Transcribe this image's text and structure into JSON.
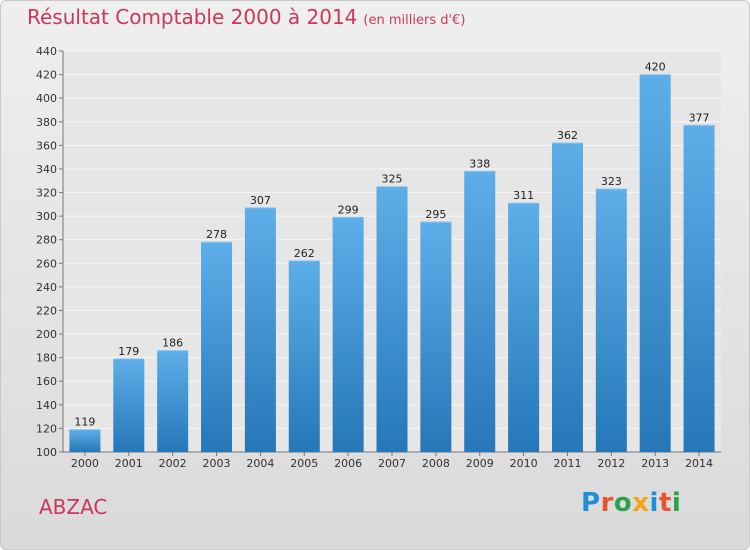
{
  "title": "Résultat Comptable 2000 à 2014",
  "title_unit": "(en milliers d'€)",
  "place_name": "ABZAC",
  "logo_text": "Proxiti",
  "colors": {
    "title": "#c8375f",
    "bar_top": "#5daee8",
    "bar_bottom": "#2677b8",
    "logo": [
      "#1f8fd6",
      "#e8542f",
      "#2aa34a",
      "#f2a516",
      "#1f8fd6",
      "#e8542f",
      "#2aa34a"
    ]
  },
  "chart_data": {
    "type": "bar",
    "categories": [
      "2000",
      "2001",
      "2002",
      "2003",
      "2004",
      "2005",
      "2006",
      "2007",
      "2008",
      "2009",
      "2010",
      "2011",
      "2012",
      "2013",
      "2014"
    ],
    "values": [
      119,
      179,
      186,
      278,
      307,
      262,
      299,
      325,
      295,
      338,
      311,
      362,
      323,
      420,
      377
    ],
    "ylim": [
      100,
      440
    ],
    "yticks": [
      100,
      120,
      140,
      160,
      180,
      200,
      220,
      240,
      260,
      280,
      300,
      320,
      340,
      360,
      380,
      400,
      420,
      440
    ],
    "grid": true,
    "data_labels": true
  }
}
